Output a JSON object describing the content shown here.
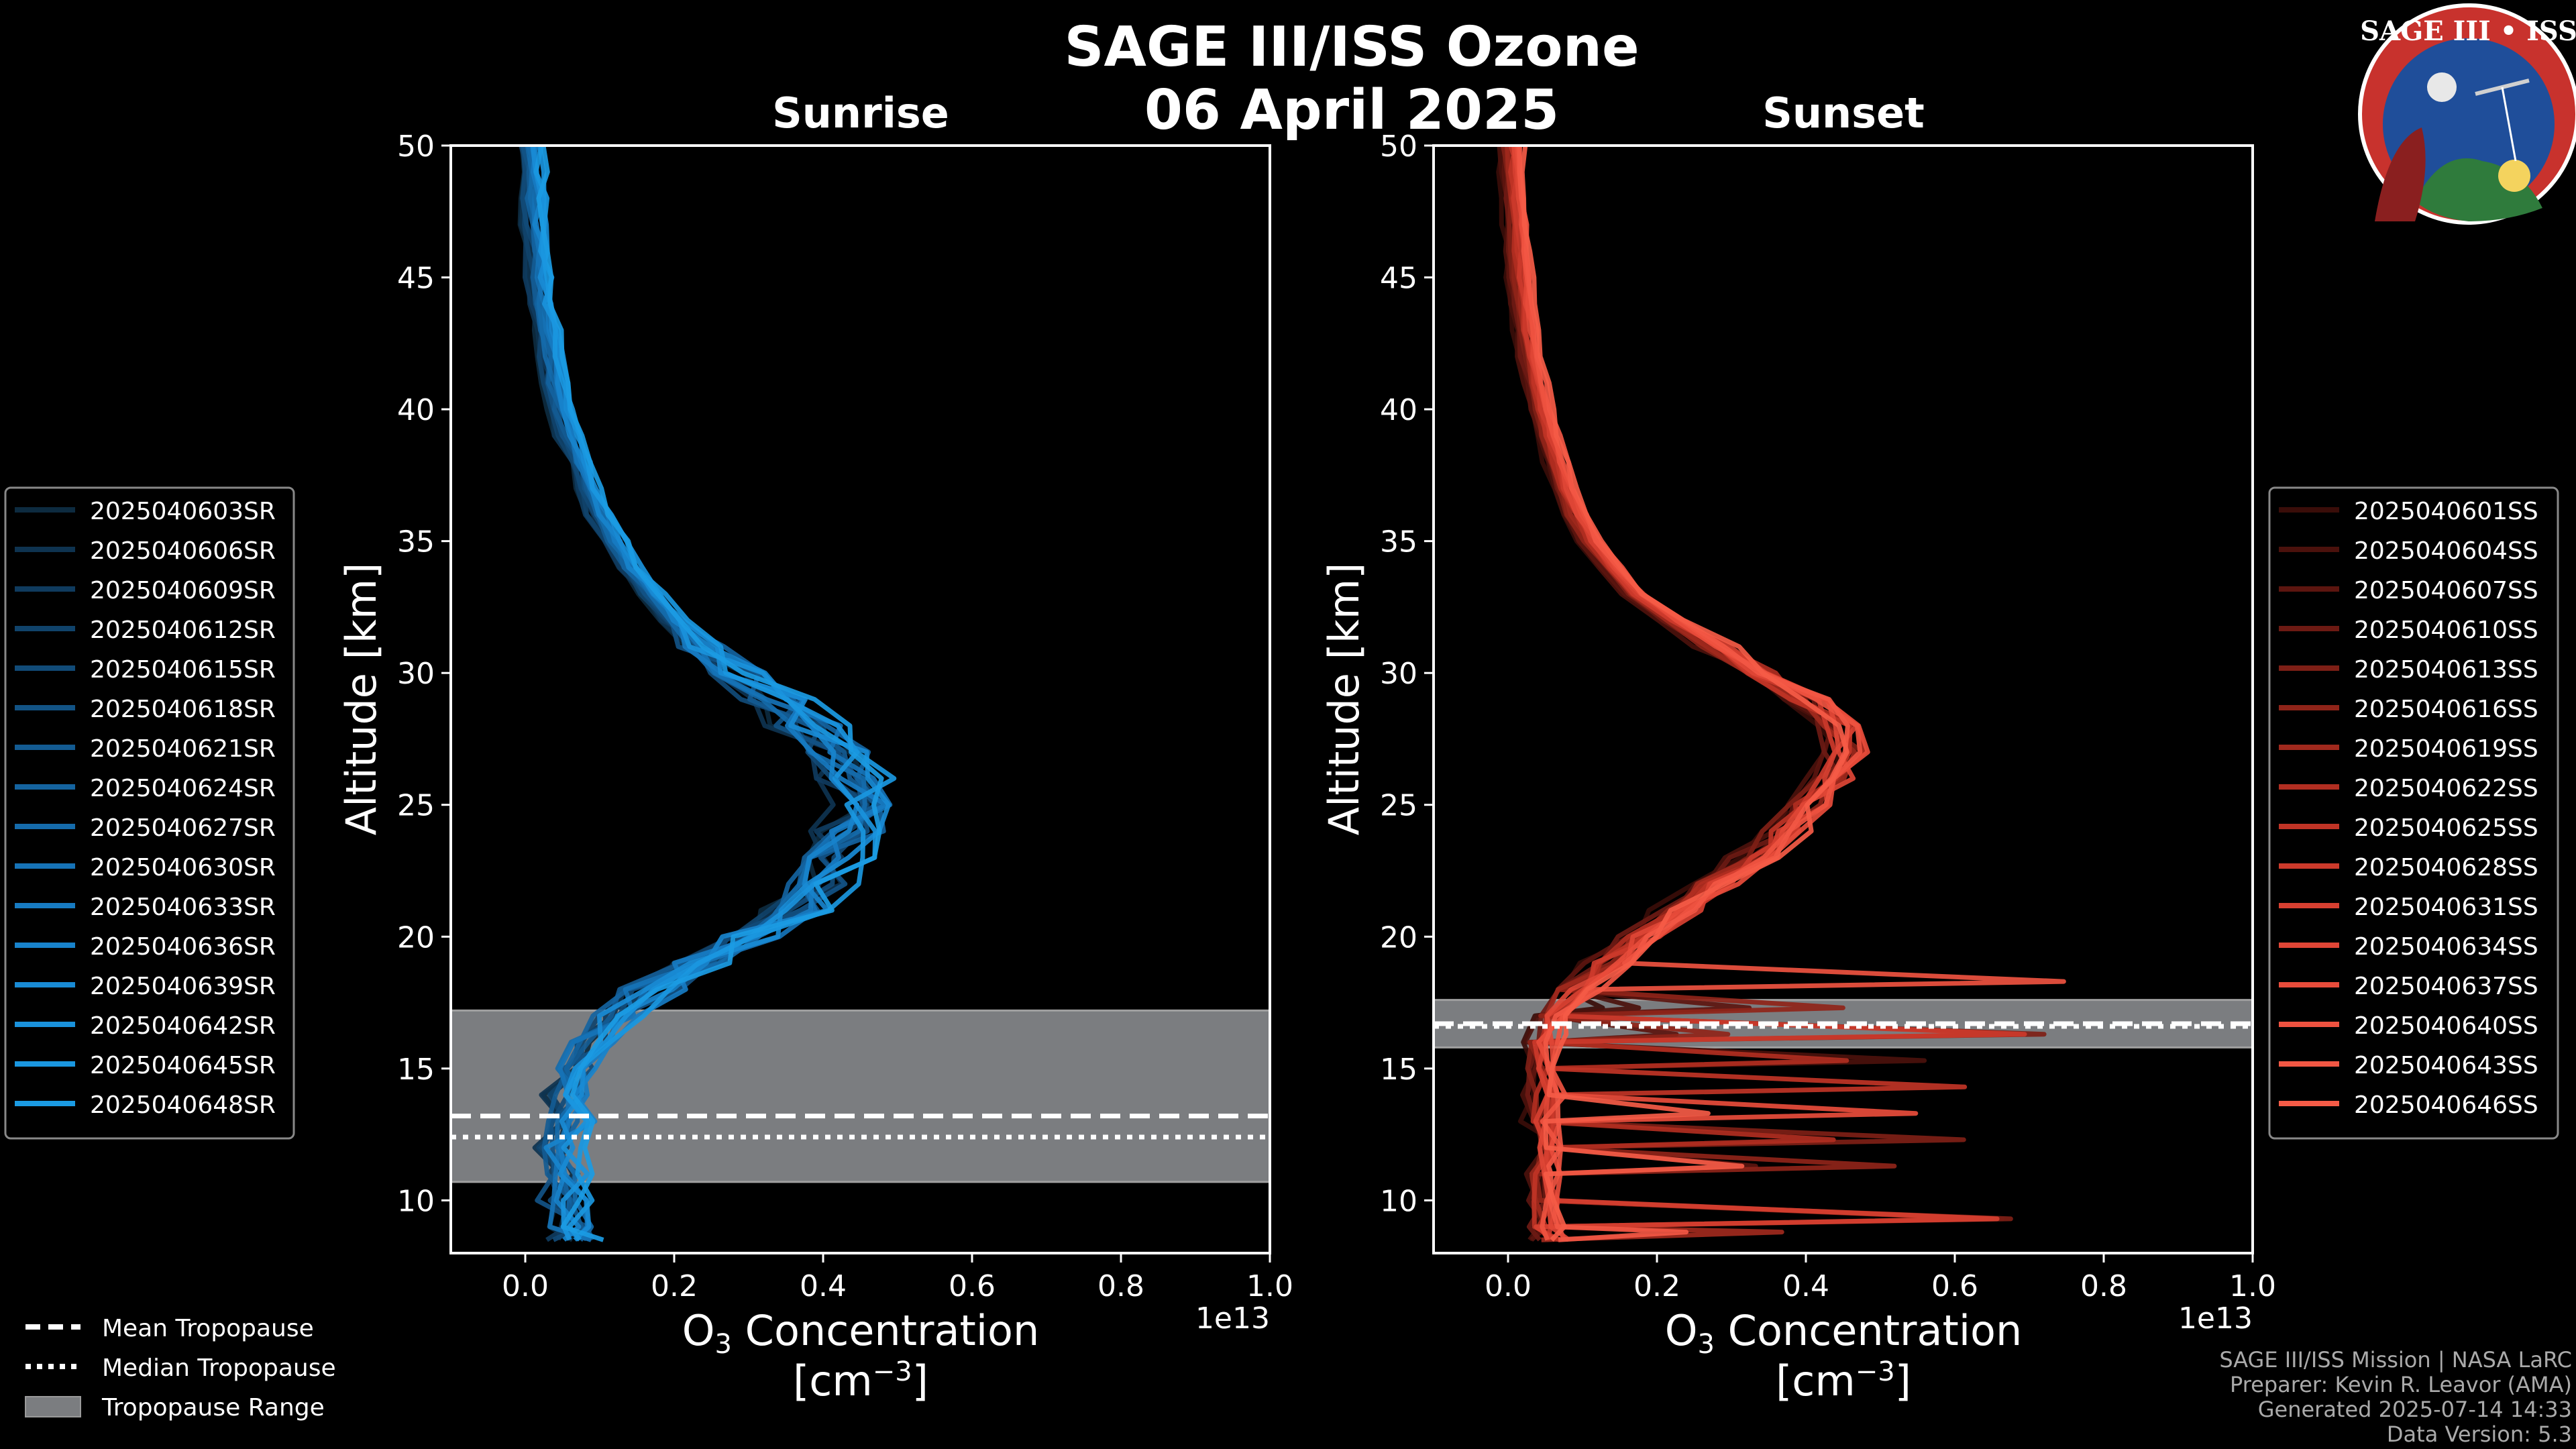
{
  "title": "SAGE III/ISS Ozone",
  "date": "06 April 2025",
  "logo": {
    "text": "SAGE III • ISS",
    "colors": {
      "ring": "#c8322d",
      "inner": "#1f4e9a",
      "land": "#2f7b3c"
    }
  },
  "colors": {
    "background": "#000000",
    "sunrise_base": "#1a8fd6",
    "sunset_base": "#f25a45",
    "tropo_band": "#7b7d80"
  },
  "axis_text": {
    "ylabel": "Altitude [km]",
    "xlabel_line1": "O",
    "xlabel_sub": "3",
    "xlabel_rest": " Concentration",
    "xlabel_line2": "[cm",
    "xlabel_sup": "−3",
    "xlabel_close": "]",
    "offset": "1e13"
  },
  "chart_data": [
    {
      "type": "line",
      "title": "Sunrise",
      "x_units": "O3 concentration (1e13 cm^-3)",
      "y_units": "Altitude (km)",
      "xlim": [
        -0.1,
        1.0
      ],
      "ylim": [
        8,
        50
      ],
      "x_ticks": [
        0.0,
        0.2,
        0.4,
        0.6,
        0.8,
        1.0
      ],
      "x_tick_labels": [
        "0.0",
        "0.2",
        "0.4",
        "0.6",
        "0.8",
        "1.0"
      ],
      "y_ticks": [
        10,
        15,
        20,
        25,
        30,
        35,
        40,
        45,
        50
      ],
      "y_tick_labels": [
        "10",
        "15",
        "20",
        "25",
        "30",
        "35",
        "40",
        "45",
        "50"
      ],
      "altitude": [
        8.5,
        9,
        10,
        11,
        12,
        13,
        14,
        15,
        16,
        17,
        18,
        19,
        20,
        21,
        22,
        23,
        24,
        25,
        26,
        27,
        28,
        29,
        30,
        31,
        32,
        33,
        34,
        35,
        36,
        37,
        38,
        39,
        40,
        41,
        42,
        43,
        44,
        45,
        46,
        47,
        48,
        49,
        50
      ],
      "base_profile": [
        0.07,
        0.06,
        0.05,
        0.05,
        0.05,
        0.06,
        0.06,
        0.07,
        0.09,
        0.12,
        0.17,
        0.23,
        0.3,
        0.36,
        0.4,
        0.42,
        0.44,
        0.45,
        0.44,
        0.42,
        0.38,
        0.34,
        0.29,
        0.24,
        0.2,
        0.17,
        0.14,
        0.12,
        0.1,
        0.085,
        0.075,
        0.06,
        0.05,
        0.04,
        0.034,
        0.028,
        0.023,
        0.019,
        0.016,
        0.013,
        0.011,
        0.009,
        0.007
      ],
      "tropopause": {
        "mean_km": 13.2,
        "median_km": 12.4,
        "range_km": [
          10.7,
          17.2
        ]
      },
      "legend_position": "left",
      "series_names": [
        "2025040603SR",
        "2025040606SR",
        "2025040609SR",
        "2025040612SR",
        "2025040615SR",
        "2025040618SR",
        "2025040621SR",
        "2025040624SR",
        "2025040627SR",
        "2025040630SR",
        "2025040633SR",
        "2025040636SR",
        "2025040639SR",
        "2025040642SR",
        "2025040645SR",
        "2025040648SR"
      ],
      "series_colors": [
        "#0d2b40",
        "#0e3350",
        "#0f3b5e",
        "#10436b",
        "#114b78",
        "#125385",
        "#135b92",
        "#14639f",
        "#156bab",
        "#1673b7",
        "#177bc2",
        "#1883cc",
        "#198bd5",
        "#1a92dc",
        "#1a97e0",
        "#1b9be3"
      ]
    },
    {
      "type": "line",
      "title": "Sunset",
      "x_units": "O3 concentration (1e13 cm^-3)",
      "y_units": "Altitude (km)",
      "xlim": [
        -0.1,
        1.0
      ],
      "ylim": [
        8,
        50
      ],
      "x_ticks": [
        0.0,
        0.2,
        0.4,
        0.6,
        0.8,
        1.0
      ],
      "x_tick_labels": [
        "0.0",
        "0.2",
        "0.4",
        "0.6",
        "0.8",
        "1.0"
      ],
      "y_ticks": [
        10,
        15,
        20,
        25,
        30,
        35,
        40,
        45,
        50
      ],
      "y_tick_labels": [
        "10",
        "15",
        "20",
        "25",
        "30",
        "35",
        "40",
        "45",
        "50"
      ],
      "altitude": [
        8.5,
        9,
        10,
        11,
        12,
        13,
        14,
        15,
        16,
        17,
        18,
        19,
        20,
        21,
        22,
        23,
        24,
        25,
        26,
        27,
        28,
        29,
        30,
        31,
        32,
        33,
        34,
        35,
        36,
        37,
        38,
        39,
        40,
        41,
        42,
        43,
        44,
        45,
        46,
        47,
        48,
        49,
        50
      ],
      "base_profile": [
        0.06,
        0.05,
        0.05,
        0.05,
        0.05,
        0.05,
        0.05,
        0.05,
        0.05,
        0.06,
        0.09,
        0.13,
        0.18,
        0.23,
        0.28,
        0.33,
        0.37,
        0.41,
        0.44,
        0.46,
        0.45,
        0.4,
        0.34,
        0.28,
        0.22,
        0.17,
        0.14,
        0.11,
        0.09,
        0.075,
        0.065,
        0.055,
        0.045,
        0.037,
        0.03,
        0.025,
        0.02,
        0.017,
        0.014,
        0.011,
        0.009,
        0.007,
        0.006
      ],
      "tropopause": {
        "mean_km": 16.7,
        "median_km": 16.6,
        "range_km": [
          15.8,
          17.6
        ]
      },
      "legend_position": "right",
      "series_names": [
        "2025040601SS",
        "2025040604SS",
        "2025040607SS",
        "2025040610SS",
        "2025040613SS",
        "2025040616SS",
        "2025040619SS",
        "2025040622SS",
        "2025040625SS",
        "2025040628SS",
        "2025040631SS",
        "2025040634SS",
        "2025040637SS",
        "2025040640SS",
        "2025040643SS",
        "2025040646SS"
      ],
      "series_colors": [
        "#3a0d09",
        "#4b110c",
        "#5c150f",
        "#6d1a13",
        "#7e1f16",
        "#8f2419",
        "#a0291d",
        "#b12e21",
        "#c03426",
        "#cc3a2b",
        "#d74031",
        "#e04636",
        "#e84c3b",
        "#ee5240",
        "#f25744",
        "#f55b47"
      ]
    }
  ],
  "legend": {
    "mean": "Mean Tropopause",
    "median": "Median Tropopause",
    "range": "Tropopause Range"
  },
  "credits": {
    "line1": "SAGE III/ISS Mission | NASA LaRC",
    "line2": "Preparer: Kevin R. Leavor (AMA)",
    "line3": "Generated 2025-07-14 14:33",
    "line4": "Data Version: 5.3"
  }
}
